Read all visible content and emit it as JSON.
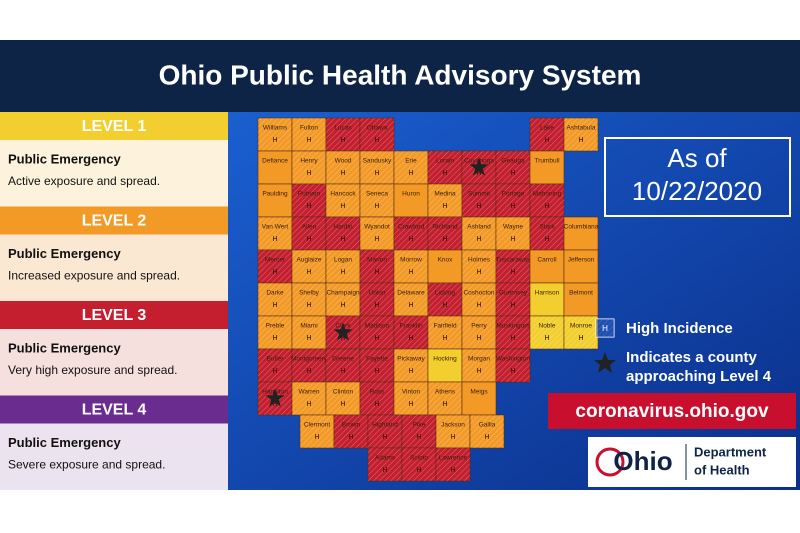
{
  "header": {
    "title": "Ohio Public Health Advisory System"
  },
  "levels": [
    {
      "title": "LEVEL 1",
      "heading": "Public Emergency",
      "description": "Active exposure and spread.",
      "color": "#f2cf2e",
      "background": "#fdf3dc"
    },
    {
      "title": "LEVEL 2",
      "heading": "Public Emergency",
      "description": "Increased exposure and spread.",
      "color": "#f39a26",
      "background": "#fbe8d3"
    },
    {
      "title": "LEVEL 3",
      "heading": "Public Emergency",
      "description": "Very high exposure and spread.",
      "color": "#c41f2e",
      "background": "#f6e0dd"
    },
    {
      "title": "LEVEL 4",
      "heading": "Public Emergency",
      "description": "Severe exposure and spread.",
      "color": "#6a2c8e",
      "background": "#ebe3ef"
    }
  ],
  "date": {
    "prefix": "As of",
    "value": "10/22/2020"
  },
  "legend": {
    "hatch_label": "H",
    "high_incidence": "High Incidence",
    "star_line1": "Indicates a county",
    "star_line2": "approaching Level 4"
  },
  "url": "coronavirus.ohio.gov",
  "logo": {
    "name": "Ohio",
    "line1": "Department",
    "line2": "of Health"
  },
  "counties": [
    [
      {
        "name": "Williams",
        "level": 2,
        "high": true
      },
      {
        "name": "Fulton",
        "level": 2,
        "high": true
      },
      {
        "name": "Lucas",
        "level": 3,
        "high": true
      },
      {
        "name": "Ottawa",
        "level": 3,
        "high": true
      },
      {
        "name": "Lake",
        "level": 3,
        "high": true
      },
      {
        "name": "Ashtabula",
        "level": 2,
        "high": true
      }
    ],
    [
      {
        "name": "Defiance",
        "level": 2,
        "high": false
      },
      {
        "name": "Henry",
        "level": 2,
        "high": true
      },
      {
        "name": "Wood",
        "level": 2,
        "high": true
      },
      {
        "name": "Sandusky",
        "level": 2,
        "high": true
      },
      {
        "name": "Erie",
        "level": 2,
        "high": true
      },
      {
        "name": "Lorain",
        "level": 3,
        "high": true
      },
      {
        "name": "Cuyahoga",
        "level": 3,
        "high": true,
        "star": true
      },
      {
        "name": "Geauga",
        "level": 3,
        "high": true
      },
      {
        "name": "Trumbull",
        "level": 2,
        "high": false
      }
    ],
    [
      {
        "name": "Paulding",
        "level": 2,
        "high": false
      },
      {
        "name": "Putnam",
        "level": 3,
        "high": true
      },
      {
        "name": "Hancock",
        "level": 2,
        "high": true
      },
      {
        "name": "Seneca",
        "level": 2,
        "high": true
      },
      {
        "name": "Huron",
        "level": 2,
        "high": false
      },
      {
        "name": "Medina",
        "level": 2,
        "high": true
      },
      {
        "name": "Summit",
        "level": 3,
        "high": true
      },
      {
        "name": "Portage",
        "level": 3,
        "high": true
      },
      {
        "name": "Mahoning",
        "level": 3,
        "high": true
      }
    ],
    [
      {
        "name": "Van Wert",
        "level": 2,
        "high": true
      },
      {
        "name": "Allen",
        "level": 3,
        "high": true
      },
      {
        "name": "Hardin",
        "level": 3,
        "high": true
      },
      {
        "name": "Wyandot",
        "level": 2,
        "high": true
      },
      {
        "name": "Crawford",
        "level": 3,
        "high": true
      },
      {
        "name": "Richland",
        "level": 3,
        "high": true
      },
      {
        "name": "Ashland",
        "level": 2,
        "high": true
      },
      {
        "name": "Wayne",
        "level": 2,
        "high": true
      },
      {
        "name": "Stark",
        "level": 3,
        "high": true
      },
      {
        "name": "Columbiana",
        "level": 2,
        "high": false
      }
    ],
    [
      {
        "name": "Mercer",
        "level": 3,
        "high": true
      },
      {
        "name": "Auglaize",
        "level": 2,
        "high": true
      },
      {
        "name": "Logan",
        "level": 2,
        "high": true
      },
      {
        "name": "Marion",
        "level": 3,
        "high": true
      },
      {
        "name": "Morrow",
        "level": 2,
        "high": true
      },
      {
        "name": "Knox",
        "level": 2,
        "high": false
      },
      {
        "name": "Holmes",
        "level": 2,
        "high": true
      },
      {
        "name": "Tuscarawas",
        "level": 3,
        "high": true
      },
      {
        "name": "Carroll",
        "level": 2,
        "high": false
      },
      {
        "name": "Jefferson",
        "level": 2,
        "high": false
      }
    ],
    [
      {
        "name": "Darke",
        "level": 2,
        "high": true
      },
      {
        "name": "Shelby",
        "level": 2,
        "high": true
      },
      {
        "name": "Champaign",
        "level": 2,
        "high": true
      },
      {
        "name": "Union",
        "level": 3,
        "high": true
      },
      {
        "name": "Delaware",
        "level": 2,
        "high": true
      },
      {
        "name": "Licking",
        "level": 3,
        "high": true
      },
      {
        "name": "Coshocton",
        "level": 2,
        "high": true
      },
      {
        "name": "Guernsey",
        "level": 3,
        "high": true
      },
      {
        "name": "Harrison",
        "level": 1,
        "high": false
      },
      {
        "name": "Belmont",
        "level": 2,
        "high": false
      }
    ],
    [
      {
        "name": "Preble",
        "level": 2,
        "high": true
      },
      {
        "name": "Miami",
        "level": 2,
        "high": true
      },
      {
        "name": "Clark",
        "level": 3,
        "high": true,
        "star": true
      },
      {
        "name": "Madison",
        "level": 3,
        "high": true
      },
      {
        "name": "Franklin",
        "level": 3,
        "high": true
      },
      {
        "name": "Fairfield",
        "level": 2,
        "high": true
      },
      {
        "name": "Perry",
        "level": 2,
        "high": true
      },
      {
        "name": "Muskingum",
        "level": 3,
        "high": true
      },
      {
        "name": "Noble",
        "level": 1,
        "high": true
      },
      {
        "name": "Monroe",
        "level": 1,
        "high": true
      }
    ],
    [
      {
        "name": "Butler",
        "level": 3,
        "high": true
      },
      {
        "name": "Montgomery",
        "level": 3,
        "high": true
      },
      {
        "name": "Greene",
        "level": 3,
        "high": true
      },
      {
        "name": "Fayette",
        "level": 3,
        "high": true
      },
      {
        "name": "Pickaway",
        "level": 2,
        "high": true
      },
      {
        "name": "Hocking",
        "level": 1,
        "high": false
      },
      {
        "name": "Morgan",
        "level": 2,
        "high": true
      },
      {
        "name": "Washington",
        "level": 3,
        "high": true
      }
    ],
    [
      {
        "name": "Hamilton",
        "level": 3,
        "high": true,
        "star": true
      },
      {
        "name": "Warren",
        "level": 2,
        "high": true
      },
      {
        "name": "Clinton",
        "level": 2,
        "high": true
      },
      {
        "name": "Ross",
        "level": 3,
        "high": true
      },
      {
        "name": "Vinton",
        "level": 2,
        "high": true
      },
      {
        "name": "Athens",
        "level": 2,
        "high": true
      },
      {
        "name": "Meigs",
        "level": 2,
        "high": false
      }
    ],
    [
      {
        "name": "Clermont",
        "level": 2,
        "high": true
      },
      {
        "name": "Brown",
        "level": 3,
        "high": true
      },
      {
        "name": "Highland",
        "level": 3,
        "high": true
      },
      {
        "name": "Pike",
        "level": 3,
        "high": true
      },
      {
        "name": "Jackson",
        "level": 2,
        "high": true
      },
      {
        "name": "Gallia",
        "level": 2,
        "high": true
      }
    ],
    [
      {
        "name": "Adams",
        "level": 3,
        "high": true
      },
      {
        "name": "Scioto",
        "level": 3,
        "high": true
      },
      {
        "name": "Lawrence",
        "level": 3,
        "high": true
      }
    ]
  ]
}
